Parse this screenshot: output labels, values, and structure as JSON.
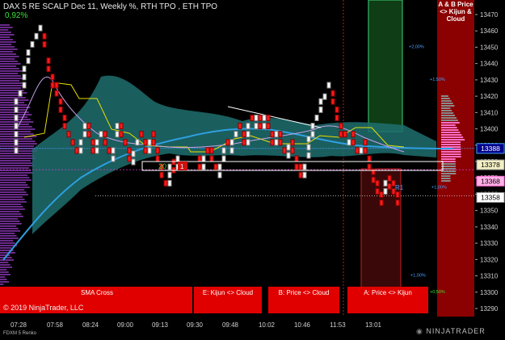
{
  "header": {
    "title": "DAX 5 RE SCALP Dec 11, Weekly %, RTH TPO , ETH TPO",
    "change_pct": "0,92%"
  },
  "ab_label": "A & B Price <> Kijun & Cloud",
  "signals": {
    "sma": "SMA  Cross",
    "e": "E: Kijun <> Cloud",
    "b": "B: Price <> Cloud",
    "a": "A: Price <> Kijun"
  },
  "copyright": "© 2019 NinjaTrader, LLC",
  "instrument": "FDXM 5 Renko",
  "brand": "NINJATRADER",
  "box_labels": {
    "count": "20",
    "marker": "1"
  },
  "r1_label": "R1",
  "pct_levels": [
    {
      "text": "+2,00%",
      "price": 13451
    },
    {
      "text": "+1,50%",
      "price": 13431
    },
    {
      "text": "+1,00%",
      "price": 13365
    },
    {
      "text": "+1,00%",
      "price": 13311
    },
    {
      "text": "+0,50%",
      "price": 13301
    }
  ],
  "price_tags": [
    {
      "text": "13388",
      "price": 13388,
      "bg": "#00008b",
      "fg": "#ffffff",
      "border": "#4aa0ff"
    },
    {
      "text": "13378",
      "price": 13378,
      "bg": "#f2efc4",
      "fg": "#000000",
      "border": "#999999"
    },
    {
      "text": "13368",
      "price": 13368,
      "bg": "#ffb0e8",
      "fg": "#000000",
      "border": "#ff66cc"
    },
    {
      "text": "13358",
      "price": 13358,
      "bg": "#ffffff",
      "fg": "#000000",
      "border": "#999999"
    }
  ],
  "colors": {
    "background": "#000000",
    "cloud": "#1f6e6e",
    "bull_bar": "#ffffff",
    "bear_bar": "#ff1a1a",
    "signal_bar": "#e00000",
    "sma_line": "#2f9fe0",
    "ab_panel": "#8b0000"
  },
  "chart_data": {
    "type": "renko",
    "title": "DAX 5 RE SCALP Dec 11, Weekly %, RTH TPO , ETH TPO",
    "instrument": "FDXM 5 Renko",
    "y_ticks": [
      13290,
      13300,
      13310,
      13320,
      13330,
      13340,
      13350,
      13360,
      13370,
      13380,
      13390,
      13400,
      13410,
      13420,
      13430,
      13440,
      13450,
      13460,
      13470
    ],
    "ylim": [
      13285,
      13478
    ],
    "x_ticks": [
      "07:28",
      "07:58",
      "08:24",
      "09:00",
      "09:13",
      "09:30",
      "09:48",
      "10:02",
      "10:46",
      "11:53",
      "13:01"
    ],
    "legend": [
      "+2,00%",
      "+1,50%",
      "+1,00%",
      "+0,50%"
    ]
  }
}
